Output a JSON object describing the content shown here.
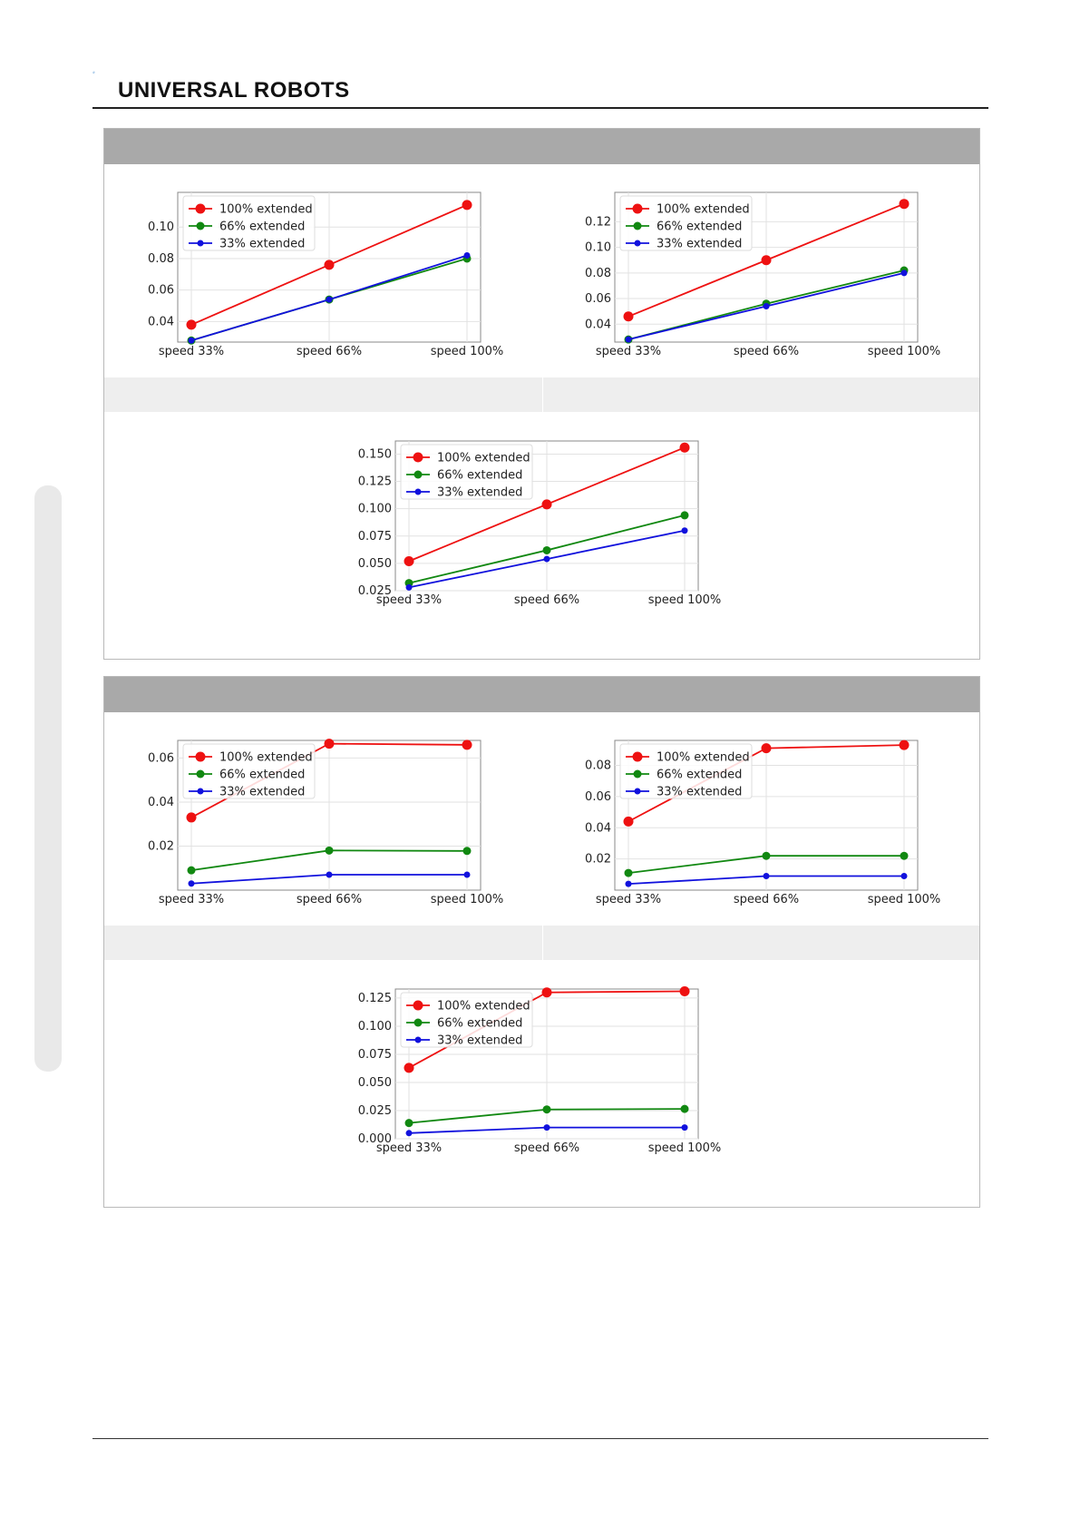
{
  "header": {
    "brand": "UNIVERSAL ROBOTS",
    "logo_icon": "ur-logo-icon",
    "brand_color": "#5b9bd5"
  },
  "colors": {
    "red": "#ee1111",
    "green": "#118811",
    "blue": "#1111dd",
    "panel_head": "#a9a9a9",
    "caption_bg": "#eeeeee"
  },
  "chart_data": [
    {
      "type": "line",
      "categories": [
        "speed 33%",
        "speed 66%",
        "speed 100%"
      ],
      "yticks": [
        "0.04",
        "0.06",
        "0.08",
        "0.10"
      ],
      "ylim": [
        0.027,
        0.122
      ],
      "series": [
        {
          "name": "100% extended",
          "values": [
            0.038,
            0.076,
            0.114
          ]
        },
        {
          "name": "66% extended",
          "values": [
            0.028,
            0.054,
            0.08
          ]
        },
        {
          "name": "33% extended",
          "values": [
            0.028,
            0.054,
            0.082
          ]
        }
      ]
    },
    {
      "type": "line",
      "categories": [
        "speed 33%",
        "speed 66%",
        "speed 100%"
      ],
      "yticks": [
        "0.04",
        "0.06",
        "0.08",
        "0.10",
        "0.12"
      ],
      "ylim": [
        0.026,
        0.143
      ],
      "series": [
        {
          "name": "100% extended",
          "values": [
            0.046,
            0.09,
            0.134
          ]
        },
        {
          "name": "66% extended",
          "values": [
            0.028,
            0.056,
            0.082
          ]
        },
        {
          "name": "33% extended",
          "values": [
            0.028,
            0.054,
            0.08
          ]
        }
      ]
    },
    {
      "type": "line",
      "categories": [
        "speed 33%",
        "speed 66%",
        "speed 100%"
      ],
      "yticks": [
        "0.025",
        "0.050",
        "0.075",
        "0.100",
        "0.125",
        "0.150"
      ],
      "ylim": [
        0.025,
        0.162
      ],
      "series": [
        {
          "name": "100% extended",
          "values": [
            0.052,
            0.104,
            0.156
          ]
        },
        {
          "name": "66% extended",
          "values": [
            0.032,
            0.062,
            0.094
          ]
        },
        {
          "name": "33% extended",
          "values": [
            0.028,
            0.054,
            0.08
          ]
        }
      ]
    },
    {
      "type": "line",
      "categories": [
        "speed 33%",
        "speed 66%",
        "speed 100%"
      ],
      "yticks": [
        "0.02",
        "0.04",
        "0.06"
      ],
      "ylim": [
        0.0,
        0.068
      ],
      "series": [
        {
          "name": "100% extended",
          "values": [
            0.033,
            0.0665,
            0.066
          ]
        },
        {
          "name": "66% extended",
          "values": [
            0.009,
            0.018,
            0.0178
          ]
        },
        {
          "name": "33% extended",
          "values": [
            0.003,
            0.007,
            0.007
          ]
        }
      ]
    },
    {
      "type": "line",
      "categories": [
        "speed 33%",
        "speed 66%",
        "speed 100%"
      ],
      "yticks": [
        "0.02",
        "0.04",
        "0.06",
        "0.08"
      ],
      "ylim": [
        0.0,
        0.096
      ],
      "series": [
        {
          "name": "100% extended",
          "values": [
            0.044,
            0.091,
            0.093
          ]
        },
        {
          "name": "66% extended",
          "values": [
            0.011,
            0.022,
            0.022
          ]
        },
        {
          "name": "33% extended",
          "values": [
            0.004,
            0.009,
            0.009
          ]
        }
      ]
    },
    {
      "type": "line",
      "categories": [
        "speed 33%",
        "speed 66%",
        "speed 100%"
      ],
      "yticks": [
        "0.000",
        "0.025",
        "0.050",
        "0.075",
        "0.100",
        "0.125"
      ],
      "ylim": [
        0.0,
        0.133
      ],
      "series": [
        {
          "name": "100% extended",
          "values": [
            0.063,
            0.13,
            0.131
          ]
        },
        {
          "name": "66% extended",
          "values": [
            0.014,
            0.026,
            0.0265
          ]
        },
        {
          "name": "33% extended",
          "values": [
            0.005,
            0.01,
            0.01
          ]
        }
      ]
    }
  ]
}
